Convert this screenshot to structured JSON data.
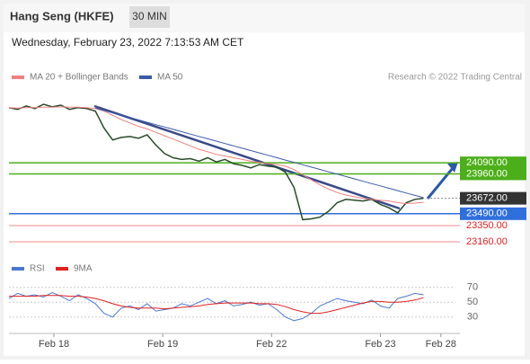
{
  "header": {
    "title": "Hang Seng (HKFE)",
    "interval": "30 MIN",
    "datetime": "Wednesday, February 23, 2022 7:13:53 AM CET"
  },
  "chart_data": [
    {
      "type": "candlestick-line",
      "legend": [
        "MA 20 + Bollinger Bands",
        "MA 50"
      ],
      "credit": "Research © 2022 Trading Central",
      "xlim": [
        0,
        52
      ],
      "xticks": [
        {
          "value": 5.2,
          "label": "Feb 18"
        },
        {
          "value": 17.8,
          "label": "Feb 19"
        },
        {
          "value": 30.4,
          "label": "Feb 22"
        },
        {
          "value": 43,
          "label": "Feb 23"
        },
        {
          "value": 50,
          "label": "Feb 28"
        }
      ],
      "ylim": [
        22990,
        24950
      ],
      "series": [
        {
          "name": "Price",
          "color": "#2a4a2a",
          "values": [
            24740,
            24720,
            24760,
            24730,
            24780,
            24750,
            24770,
            24720,
            24740,
            24730,
            24700,
            24500,
            24360,
            24390,
            24400,
            24380,
            24420,
            24300,
            24200,
            24150,
            24130,
            24140,
            24110,
            24150,
            24100,
            24130,
            24080,
            24060,
            24030,
            24070,
            24050,
            24040,
            23980,
            23800,
            23420,
            23430,
            23450,
            23520,
            23620,
            23660,
            23650,
            23640,
            23660,
            23600,
            23560,
            23500,
            23620,
            23660,
            23672
          ]
        },
        {
          "name": "MA 20",
          "color": "#f08080",
          "values": [
            24740,
            24735,
            24740,
            24740,
            24745,
            24745,
            24750,
            24745,
            24745,
            24740,
            24730,
            24700,
            24650,
            24600,
            24560,
            24520,
            24490,
            24450,
            24410,
            24370,
            24330,
            24290,
            24250,
            24220,
            24190,
            24170,
            24150,
            24130,
            24110,
            24095,
            24080,
            24070,
            24050,
            24010,
            23950,
            23890,
            23830,
            23780,
            23740,
            23710,
            23690,
            23670,
            23660,
            23650,
            23640,
            23620,
            23610,
            23615,
            23625
          ]
        },
        {
          "name": "MA 50",
          "color": "#3a5aa8",
          "values": [
            null,
            null,
            null,
            null,
            null,
            null,
            null,
            null,
            null,
            null,
            24735,
            24707,
            24679,
            24652,
            24624,
            24596,
            24568,
            24540,
            24513,
            24485,
            24457,
            24429,
            24401,
            24374,
            24346,
            24318,
            24290,
            24262,
            24235,
            24207,
            24179,
            24151,
            24123,
            24096,
            24068,
            24040,
            24012,
            23984,
            23957,
            23929,
            23901,
            23873,
            23845,
            23818,
            23790,
            23762,
            23734,
            23706,
            23680
          ]
        }
      ],
      "levels": [
        {
          "value": 24090,
          "label": "24090.00",
          "color": "#4caf1a",
          "kind": "box"
        },
        {
          "value": 23960,
          "label": "23960.00",
          "color": "#4caf1a",
          "kind": "box"
        },
        {
          "value": 23672,
          "label": "23672.00",
          "color": "#333333",
          "kind": "current"
        },
        {
          "value": 23490,
          "label": "23490.00",
          "color": "#2f6fdc",
          "kind": "box"
        },
        {
          "value": 23350,
          "label": "23350.00",
          "color": "#e02020",
          "kind": "text"
        },
        {
          "value": 23160,
          "label": "23160.00",
          "color": "#e02020",
          "kind": "text"
        }
      ]
    },
    {
      "type": "line",
      "legend": [
        "RSI",
        "9MA"
      ],
      "xlim": [
        0,
        52
      ],
      "ylim": [
        9,
        94
      ],
      "yticks": [
        70,
        50,
        30
      ],
      "series": [
        {
          "name": "RSI",
          "color": "#4a78d0",
          "values": [
            55,
            62,
            58,
            60,
            57,
            63,
            58,
            52,
            60,
            55,
            48,
            35,
            30,
            42,
            45,
            40,
            48,
            38,
            40,
            42,
            48,
            45,
            50,
            55,
            48,
            52,
            45,
            47,
            50,
            46,
            48,
            40,
            30,
            25,
            28,
            35,
            45,
            50,
            55,
            52,
            50,
            48,
            53,
            45,
            42,
            55,
            58,
            62,
            60
          ]
        },
        {
          "name": "9MA",
          "color": "#e02020",
          "values": [
            58,
            58,
            58,
            58,
            59,
            59,
            59,
            58,
            58,
            57,
            55,
            52,
            48,
            45,
            43,
            42,
            42,
            42,
            41,
            42,
            43,
            44,
            45,
            47,
            48,
            49,
            49,
            49,
            49,
            48,
            48,
            47,
            44,
            40,
            37,
            35,
            35,
            37,
            40,
            43,
            46,
            49,
            51,
            51,
            50,
            50,
            51,
            53,
            56
          ]
        }
      ]
    }
  ]
}
